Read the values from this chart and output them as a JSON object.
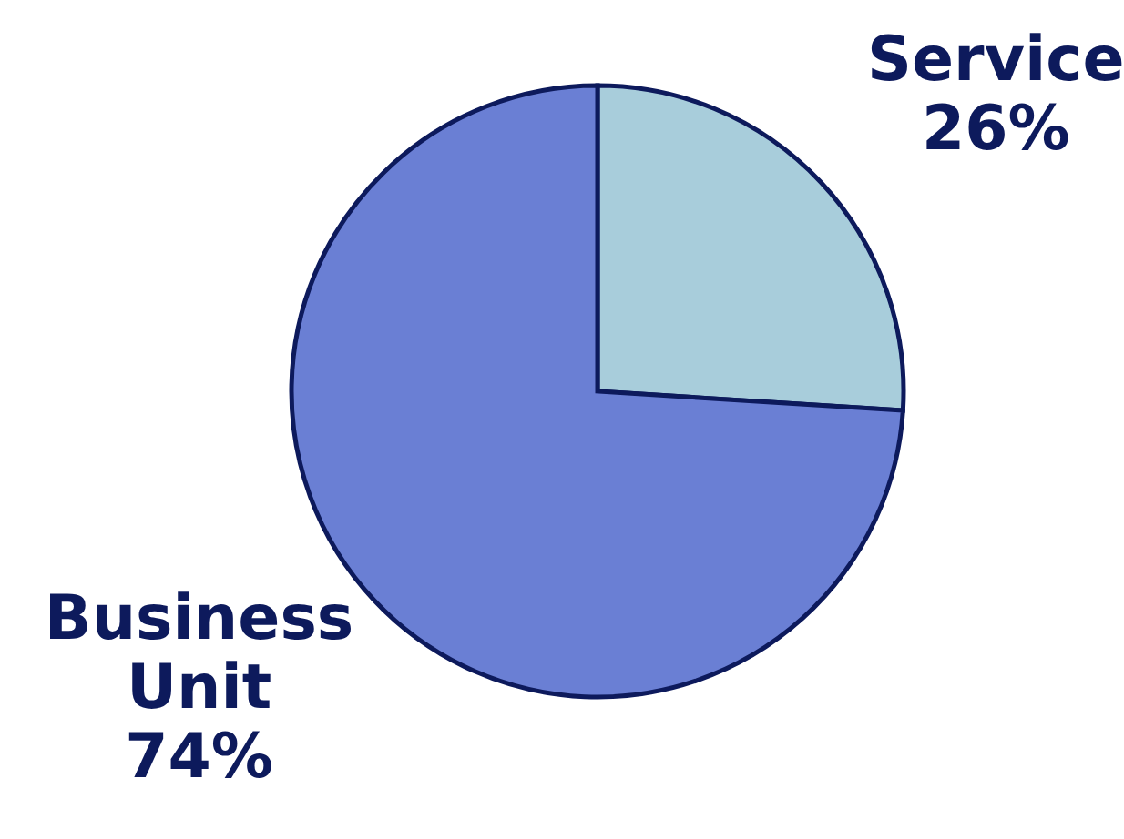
{
  "chart_data": {
    "type": "pie",
    "categories": [
      "Service",
      "Business Unit"
    ],
    "values": [
      26,
      74
    ],
    "value_labels": [
      "26%",
      "74%"
    ],
    "colors": [
      "#a8cddb",
      "#6a7fd4"
    ]
  }
}
